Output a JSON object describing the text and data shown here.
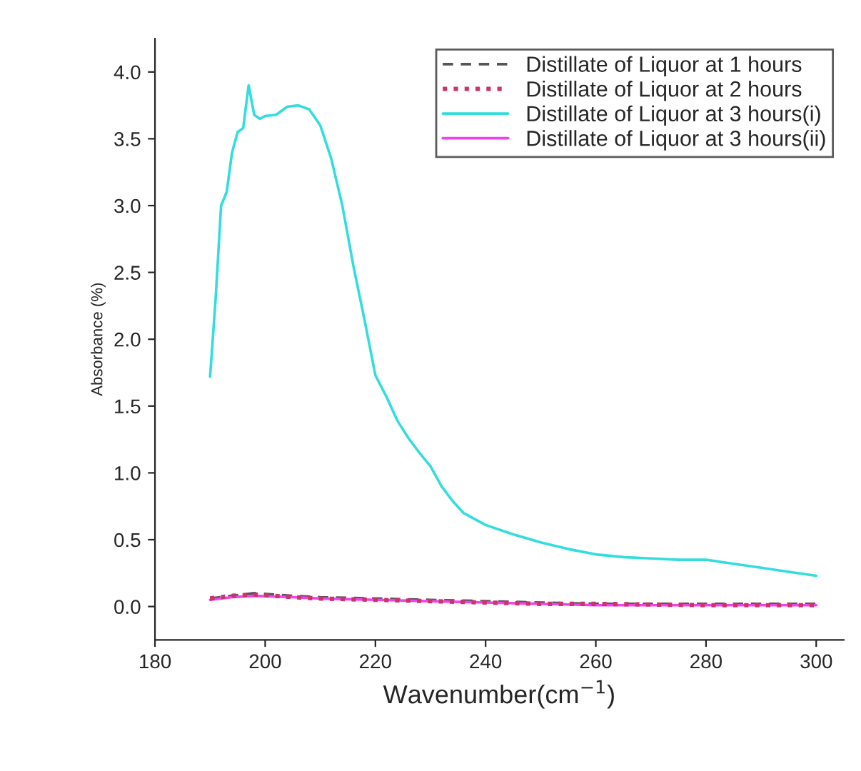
{
  "chart_data": {
    "type": "line",
    "xlabel": "Wavenumber(cm$^{−1}$)",
    "ylabel": "Absorbance (%)",
    "xlim": [
      180,
      305
    ],
    "ylim": [
      -0.25,
      4.25
    ],
    "xticks": [
      180,
      200,
      220,
      240,
      260,
      280,
      300
    ],
    "yticks": [
      {
        "value": 0,
        "label": "0.0"
      },
      0.5,
      {
        "value": 1,
        "label": "1.0"
      },
      1.5,
      {
        "value": 2,
        "label": "2.0"
      },
      2.5,
      {
        "value": 3,
        "label": "3.0"
      },
      3.5,
      {
        "value": 4,
        "label": "4.0"
      }
    ],
    "legend": "top right",
    "grid": false,
    "series": [
      {
        "name": "Distillate of Liquor at 1 hours",
        "color": "#555555",
        "line_style": "dashed",
        "x": [
          190,
          194,
          198,
          205,
          210,
          220,
          230,
          240,
          250,
          260,
          280,
          300
        ],
        "values": [
          0.06,
          0.08,
          0.1,
          0.08,
          0.07,
          0.06,
          0.05,
          0.04,
          0.03,
          0.02,
          0.02,
          0.02
        ]
      },
      {
        "name": "Distillate of Liquor at 2 hours",
        "color": "#cc3366",
        "line_style": "dotted",
        "x": [
          190,
          194,
          198,
          205,
          210,
          220,
          230,
          240,
          250,
          260,
          280,
          300
        ],
        "values": [
          0.06,
          0.08,
          0.09,
          0.07,
          0.06,
          0.05,
          0.04,
          0.03,
          0.02,
          0.02,
          0.01,
          0.01
        ]
      },
      {
        "name": "Distillate of Liquor at 3 hours(i)",
        "color": "#33dddd",
        "line_style": "solid",
        "x": [
          190,
          191,
          192,
          193,
          194,
          195,
          196,
          197,
          198,
          199,
          200,
          202,
          204,
          206,
          208,
          210,
          212,
          214,
          216,
          218,
          220,
          222,
          224,
          226,
          228,
          230,
          232,
          234,
          236,
          240,
          245,
          250,
          255,
          260,
          265,
          270,
          275,
          280,
          285,
          290,
          295,
          300
        ],
        "values": [
          1.72,
          2.3,
          3.0,
          3.1,
          3.4,
          3.55,
          3.58,
          3.9,
          3.68,
          3.65,
          3.67,
          3.68,
          3.74,
          3.75,
          3.72,
          3.6,
          3.35,
          3.0,
          2.55,
          2.15,
          1.73,
          1.57,
          1.39,
          1.26,
          1.15,
          1.05,
          0.9,
          0.79,
          0.7,
          0.61,
          0.54,
          0.48,
          0.43,
          0.39,
          0.37,
          0.36,
          0.35,
          0.35,
          0.32,
          0.29,
          0.26,
          0.23
        ]
      },
      {
        "name": "Distillate of Liquor at 3 hours(ii)",
        "color": "#ee44ee",
        "line_style": "solid",
        "x": [
          190,
          194,
          198,
          205,
          210,
          220,
          230,
          240,
          250,
          260,
          280,
          300
        ],
        "values": [
          0.05,
          0.07,
          0.08,
          0.07,
          0.06,
          0.05,
          0.04,
          0.03,
          0.02,
          0.01,
          0.01,
          0.01
        ]
      }
    ]
  }
}
